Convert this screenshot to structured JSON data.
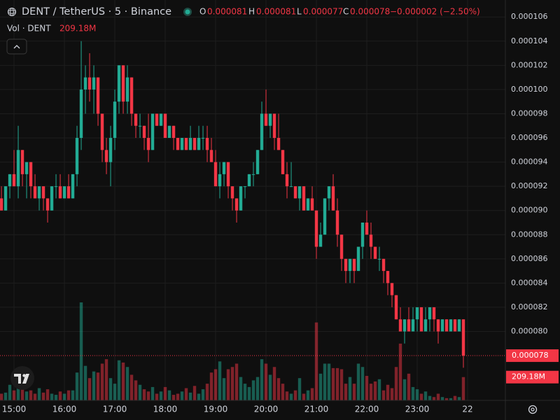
{
  "chart_data": {
    "type": "candlestick",
    "title": "DENT / TetherUS · 5 · Binance",
    "ohlc_keys": [
      "O",
      "H",
      "L",
      "C"
    ],
    "change": "−0.000002 (−2.50%)",
    "volume_title": "Vol · DENT",
    "volume_label": "209.18M",
    "up_color": "#22ab94",
    "down_color": "#f23645",
    "grid": true,
    "x": [
      885,
      890,
      895,
      900,
      905,
      910,
      915,
      920,
      925,
      930,
      935,
      940,
      945,
      950,
      955,
      960,
      965,
      970,
      975,
      980,
      985,
      990,
      995,
      1000,
      1005,
      1010,
      1015,
      1020,
      1025,
      1030,
      1035,
      1040,
      1045,
      1050,
      1055,
      1060,
      1065,
      1070,
      1075,
      1080,
      1085,
      1090,
      1095,
      1100,
      1105,
      1110,
      1115,
      1120,
      1125,
      1130,
      1135,
      1140,
      1145,
      1150,
      1155,
      1160,
      1165,
      1170,
      1175,
      1180,
      1185,
      1190,
      1195,
      1200,
      1205,
      1210,
      1215,
      1220,
      1225,
      1230,
      1235,
      1240,
      1245,
      1250,
      1255,
      1260,
      1265,
      1270,
      1275,
      1280,
      1285,
      1290,
      1295,
      1300,
      1305,
      1310,
      1315,
      1320,
      1325,
      1330,
      1335,
      1340,
      1345,
      1350,
      1355,
      1360,
      1365,
      1370,
      1375,
      1380,
      1385,
      1390,
      1395,
      1400,
      1405,
      1410,
      1415,
      1420,
      1425,
      1430,
      1435
    ],
    "open": [
      9.1e-05,
      9e-05,
      9.2e-05,
      9.3e-05,
      9.2e-05,
      9.5e-05,
      9.3e-05,
      9.4e-05,
      9.2e-05,
      9.1e-05,
      9.2e-05,
      9.1e-05,
      9e-05,
      9.2e-05,
      9.2e-05,
      9.1e-05,
      9.2e-05,
      9.1e-05,
      9.3e-05,
      9.6e-05,
      0.0001,
      0.000101,
      0.0001,
      0.000101,
      9.8e-05,
      9.5e-05,
      9.4e-05,
      9.6e-05,
      9.9e-05,
      0.000102,
      9.9e-05,
      0.000101,
      9.8e-05,
      9.7e-05,
      9.7e-05,
      9.6e-05,
      9.5e-05,
      9.8e-05,
      9.7e-05,
      9.8e-05,
      9.6e-05,
      9.7e-05,
      9.6e-05,
      9.5e-05,
      9.6e-05,
      9.5e-05,
      9.6e-05,
      9.5e-05,
      9.6e-05,
      9.6e-05,
      9.5e-05,
      9.4e-05,
      9.2e-05,
      9.3e-05,
      9.4e-05,
      9.2e-05,
      9.1e-05,
      9e-05,
      9.2e-05,
      9.2e-05,
      9.3e-05,
      9.3e-05,
      9.5e-05,
      9.8e-05,
      9.7e-05,
      9.8e-05,
      9.6e-05,
      9.5e-05,
      9.3e-05,
      9.2e-05,
      9.2e-05,
      9.1e-05,
      9.2e-05,
      9e-05,
      9.1e-05,
      9e-05,
      8.7e-05,
      8.8e-05,
      9.1e-05,
      9.2e-05,
      9e-05,
      8.8e-05,
      8.6e-05,
      8.5e-05,
      8.6e-05,
      8.5e-05,
      8.7e-05,
      8.9e-05,
      8.8e-05,
      8.7e-05,
      8.6e-05,
      8.6e-05,
      8.5e-05,
      8.4e-05,
      8.3e-05,
      8.1e-05,
      8e-05,
      8.1e-05,
      8e-05,
      8.1e-05,
      8.2e-05,
      8e-05,
      8.1e-05,
      8.2e-05,
      8.1e-05,
      8e-05,
      8.1e-05,
      8e-05,
      8.1e-05,
      8e-05,
      8.1e-05
    ],
    "high": [
      9.2e-05,
      9.2e-05,
      9.3e-05,
      9.5e-05,
      9.7e-05,
      9.5e-05,
      9.4e-05,
      9.4e-05,
      9.3e-05,
      9.2e-05,
      9.2e-05,
      9.1e-05,
      9.2e-05,
      9.3e-05,
      9.3e-05,
      9.2e-05,
      9.3e-05,
      9.3e-05,
      9.7e-05,
      0.000104,
      0.000102,
      0.000103,
      0.000102,
      0.000101,
      9.8e-05,
      9.6e-05,
      9.7e-05,
      0.0001,
      0.000102,
      0.000102,
      0.000102,
      0.000101,
      9.8e-05,
      9.8e-05,
      9.7e-05,
      9.8e-05,
      9.8e-05,
      9.8e-05,
      9.8e-05,
      9.8e-05,
      9.7e-05,
      9.7e-05,
      9.6e-05,
      9.6e-05,
      9.6e-05,
      9.7e-05,
      9.6e-05,
      9.7e-05,
      9.7e-05,
      9.7e-05,
      9.6e-05,
      9.5e-05,
      9.4e-05,
      9.4e-05,
      9.4e-05,
      9.2e-05,
      9.1e-05,
      9.2e-05,
      9.2e-05,
      9.3e-05,
      9.4e-05,
      9.5e-05,
      9.9e-05,
      0.0001,
      9.8e-05,
      9.8e-05,
      9.8e-05,
      9.5e-05,
      9.4e-05,
      9.4e-05,
      9.2e-05,
      9.2e-05,
      9.2e-05,
      9.1e-05,
      9.2e-05,
      9e-05,
      8.9e-05,
      9.1e-05,
      9.2e-05,
      9.3e-05,
      9.1e-05,
      8.8e-05,
      8.6e-05,
      8.6e-05,
      8.6e-05,
      8.7e-05,
      8.9e-05,
      9e-05,
      8.9e-05,
      8.7e-05,
      8.7e-05,
      8.6e-05,
      8.5e-05,
      8.4e-05,
      8.3e-05,
      8.2e-05,
      8.1e-05,
      8.2e-05,
      8.2e-05,
      8.2e-05,
      8.2e-05,
      8.2e-05,
      8.2e-05,
      8.2e-05,
      8.1e-05,
      8.1e-05,
      8.1e-05,
      8.1e-05,
      8.1e-05,
      8.1e-05,
      8.1e-05
    ],
    "low": [
      9e-05,
      9e-05,
      9.1e-05,
      9.2e-05,
      9.1e-05,
      9.2e-05,
      9.1e-05,
      9.1e-05,
      9.1e-05,
      9e-05,
      9e-05,
      8.9e-05,
      9e-05,
      9.1e-05,
      9.1e-05,
      9.1e-05,
      9.1e-05,
      9.1e-05,
      9.2e-05,
      9.5e-05,
      9.8e-05,
      9.9e-05,
      9.8e-05,
      9.7e-05,
      9.4e-05,
      9.3e-05,
      9.2e-05,
      9.5e-05,
      9.8e-05,
      9.8e-05,
      9.8e-05,
      9.7e-05,
      9.6e-05,
      9.6e-05,
      9.5e-05,
      9.4e-05,
      9.5e-05,
      9.7e-05,
      9.7e-05,
      9.6e-05,
      9.6e-05,
      9.5e-05,
      9.5e-05,
      9.5e-05,
      9.5e-05,
      9.5e-05,
      9.5e-05,
      9.5e-05,
      9.5e-05,
      9.4e-05,
      9.4e-05,
      9.2e-05,
      9.1e-05,
      9.2e-05,
      9.1e-05,
      9e-05,
      8.9e-05,
      9e-05,
      9.1e-05,
      9.2e-05,
      9.2e-05,
      9.3e-05,
      9.5e-05,
      9.7e-05,
      9.6e-05,
      9.5e-05,
      9.5e-05,
      9.3e-05,
      9.1e-05,
      9.2e-05,
      9.1e-05,
      9e-05,
      9e-05,
      9e-05,
      9e-05,
      8.6e-05,
      8.7e-05,
      8.8e-05,
      9e-05,
      9e-05,
      8.7e-05,
      8.5e-05,
      8.4e-05,
      8.4e-05,
      8.4e-05,
      8.5e-05,
      8.6e-05,
      8.8e-05,
      8.6e-05,
      8.6e-05,
      8.5e-05,
      8.4e-05,
      8.3e-05,
      8.2e-05,
      8.1e-05,
      8e-05,
      7.9e-05,
      8e-05,
      8e-05,
      8e-05,
      8e-05,
      8e-05,
      8e-05,
      8e-05,
      7.9e-05,
      8e-05,
      8e-05,
      8e-05,
      8e-05,
      8e-05,
      7.7e-05
    ],
    "close": [
      9e-05,
      9.2e-05,
      9.3e-05,
      9.2e-05,
      9.5e-05,
      9.3e-05,
      9.4e-05,
      9.2e-05,
      9.1e-05,
      9.2e-05,
      9.1e-05,
      9e-05,
      9.2e-05,
      9.2e-05,
      9.1e-05,
      9.2e-05,
      9.1e-05,
      9.3e-05,
      9.6e-05,
      0.0001,
      0.000101,
      0.0001,
      0.000101,
      9.8e-05,
      9.5e-05,
      9.4e-05,
      9.6e-05,
      9.9e-05,
      0.000102,
      9.9e-05,
      0.000101,
      9.8e-05,
      9.7e-05,
      9.7e-05,
      9.6e-05,
      9.5e-05,
      9.8e-05,
      9.7e-05,
      9.8e-05,
      9.6e-05,
      9.7e-05,
      9.6e-05,
      9.5e-05,
      9.6e-05,
      9.5e-05,
      9.6e-05,
      9.5e-05,
      9.6e-05,
      9.6e-05,
      9.5e-05,
      9.4e-05,
      9.2e-05,
      9.3e-05,
      9.4e-05,
      9.2e-05,
      9.1e-05,
      9e-05,
      9.2e-05,
      9.2e-05,
      9.3e-05,
      9.3e-05,
      9.5e-05,
      9.8e-05,
      9.7e-05,
      9.8e-05,
      9.6e-05,
      9.5e-05,
      9.3e-05,
      9.2e-05,
      9.2e-05,
      9.1e-05,
      9.2e-05,
      9e-05,
      9.1e-05,
      9e-05,
      8.7e-05,
      8.8e-05,
      9.1e-05,
      9.2e-05,
      9e-05,
      8.8e-05,
      8.6e-05,
      8.5e-05,
      8.6e-05,
      8.5e-05,
      8.7e-05,
      8.9e-05,
      8.8e-05,
      8.7e-05,
      8.6e-05,
      8.6e-05,
      8.5e-05,
      8.4e-05,
      8.3e-05,
      8.1e-05,
      8e-05,
      8.1e-05,
      8e-05,
      8.1e-05,
      8.2e-05,
      8e-05,
      8.1e-05,
      8.2e-05,
      8.1e-05,
      8e-05,
      8.1e-05,
      8e-05,
      8.1e-05,
      8e-05,
      8.1e-05,
      7.8e-05
    ],
    "volume": [
      60,
      70,
      140,
      90,
      200,
      120,
      80,
      90,
      60,
      110,
      70,
      100,
      60,
      50,
      80,
      60,
      90,
      90,
      250,
      880,
      310,
      200,
      260,
      250,
      330,
      370,
      200,
      150,
      360,
      340,
      300,
      230,
      180,
      140,
      100,
      80,
      120,
      60,
      80,
      120,
      90,
      50,
      60,
      80,
      110,
      70,
      130,
      60,
      100,
      150,
      250,
      280,
      350,
      200,
      280,
      300,
      330,
      210,
      150,
      120,
      180,
      210,
      370,
      330,
      230,
      300,
      200,
      150,
      80,
      60,
      90,
      200,
      60,
      90,
      110,
      700,
      240,
      330,
      330,
      290,
      290,
      280,
      150,
      210,
      150,
      330,
      300,
      220,
      150,
      170,
      190,
      90,
      140,
      110,
      300,
      510,
      190,
      240,
      120,
      100,
      60,
      80,
      40,
      30,
      60,
      30,
      20,
      20,
      40,
      30,
      209.18
    ],
    "xlim": [
      883.3,
      1485
    ],
    "xticks": [
      {
        "value": 900,
        "label": "15:00"
      },
      {
        "value": 960,
        "label": "16:00"
      },
      {
        "value": 1020,
        "label": "17:00"
      },
      {
        "value": 1080,
        "label": "18:00"
      },
      {
        "value": 1140,
        "label": "19:00"
      },
      {
        "value": 1200,
        "label": "20:00"
      },
      {
        "value": 1260,
        "label": "21:00"
      },
      {
        "value": 1320,
        "label": "22:00"
      },
      {
        "value": 1380,
        "label": "23:00"
      },
      {
        "value": 1440,
        "label": "22"
      }
    ],
    "ylim": [
      7.43e-05,
      0.0001074
    ],
    "yticks": [
      {
        "value": 8e-05,
        "label": "0.000080"
      },
      8.2e-05,
      8.4e-05,
      8.6e-05,
      8.8e-05,
      {
        "value": 9e-05,
        "label": "0.000090"
      },
      9.2e-05,
      9.4e-05,
      9.6e-05,
      9.8e-05,
      {
        "value": 0.0001,
        "label": "0.000100"
      },
      0.000102,
      0.000104,
      0.000106
    ]
  }
}
